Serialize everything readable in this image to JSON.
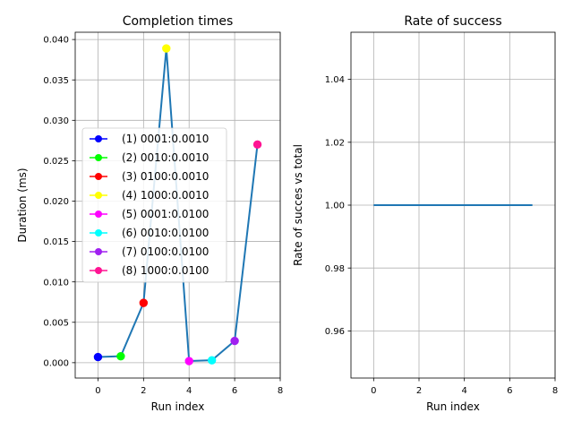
{
  "chart_data": [
    {
      "type": "line",
      "title": "Completion times",
      "xlabel": "Run index",
      "ylabel": "Duration (ms)",
      "xlim": [
        -1,
        8
      ],
      "ylim": [
        -0.0019,
        0.0409
      ],
      "xticks": [
        0,
        2,
        4,
        6,
        8
      ],
      "yticks": [
        0.0,
        0.005,
        0.01,
        0.015,
        0.02,
        0.025,
        0.03,
        0.035,
        0.04
      ],
      "ytick_labels": [
        "0.000",
        "0.005",
        "0.010",
        "0.015",
        "0.020",
        "0.025",
        "0.030",
        "0.035",
        "0.040"
      ],
      "grid": true,
      "line_color": "#1f77b4",
      "x": [
        0,
        1,
        2,
        3,
        4,
        5,
        6,
        7
      ],
      "y": [
        0.0007,
        0.0008,
        0.0074,
        0.0389,
        0.0002,
        0.0003,
        0.0027,
        0.027
      ],
      "legend_position": "center-left",
      "series": [
        {
          "name": "(1) 0001:0.0010",
          "x": 0,
          "y": 0.0007,
          "color": "#0000ff"
        },
        {
          "name": "(2) 0010:0.0010",
          "x": 1,
          "y": 0.0008,
          "color": "#00ff00"
        },
        {
          "name": "(3) 0100:0.0010",
          "x": 2,
          "y": 0.0074,
          "color": "#ff0000"
        },
        {
          "name": "(4) 1000:0.0010",
          "x": 3,
          "y": 0.0389,
          "color": "#ffff00"
        },
        {
          "name": "(5) 0001:0.0100",
          "x": 4,
          "y": 0.0002,
          "color": "#ff00ff"
        },
        {
          "name": "(6) 0010:0.0100",
          "x": 5,
          "y": 0.0003,
          "color": "#00ffff"
        },
        {
          "name": "(7) 0100:0.0100",
          "x": 6,
          "y": 0.0027,
          "color": "#a020f0"
        },
        {
          "name": "(8) 1000:0.0100",
          "x": 7,
          "y": 0.027,
          "color": "#ff1493"
        }
      ]
    },
    {
      "type": "line",
      "title": "Rate of success",
      "xlabel": "Run index",
      "ylabel": "Rate of succes vs total",
      "xlim": [
        -1,
        8
      ],
      "ylim": [
        0.945,
        1.055
      ],
      "xticks": [
        0,
        2,
        4,
        6,
        8
      ],
      "yticks": [
        0.96,
        0.98,
        1.0,
        1.02,
        1.04
      ],
      "ytick_labels": [
        "0.96",
        "0.98",
        "1.00",
        "1.02",
        "1.04"
      ],
      "grid": true,
      "line_color": "#1f77b4",
      "x": [
        0,
        1,
        2,
        3,
        4,
        5,
        6,
        7
      ],
      "y": [
        1.0,
        1.0,
        1.0,
        1.0,
        1.0,
        1.0,
        1.0,
        1.0
      ]
    }
  ]
}
